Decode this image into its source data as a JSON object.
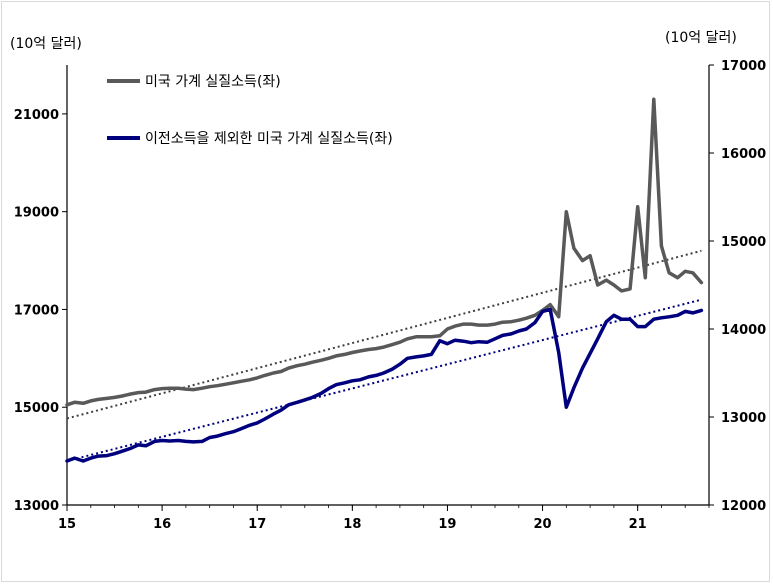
{
  "chart_data": {
    "type": "line",
    "unit_left": "(10억 달러)",
    "unit_right": "(10억 달러)",
    "x_ticks": [
      "15",
      "16",
      "17",
      "18",
      "19",
      "20",
      "21"
    ],
    "x_range": [
      2015,
      2021.75
    ],
    "y_left": {
      "range": [
        13000,
        22000
      ],
      "ticks": [
        "13000",
        "15000",
        "17000",
        "19000",
        "21000"
      ]
    },
    "y_right": {
      "range": [
        12000,
        17000
      ],
      "ticks": [
        "12000",
        "13000",
        "14000",
        "15000",
        "16000",
        "17000"
      ]
    },
    "grid": false,
    "legend_position": "top-left",
    "series": [
      {
        "name": "미국 가계 실질소득(좌)",
        "color": "#595959",
        "axis": "left",
        "x": [
          2015.0,
          2015.08,
          2015.17,
          2015.25,
          2015.33,
          2015.42,
          2015.5,
          2015.58,
          2015.67,
          2015.75,
          2015.83,
          2015.92,
          2016.0,
          2016.08,
          2016.17,
          2016.25,
          2016.33,
          2016.42,
          2016.5,
          2016.58,
          2016.67,
          2016.75,
          2016.83,
          2016.92,
          2017.0,
          2017.08,
          2017.17,
          2017.25,
          2017.33,
          2017.42,
          2017.5,
          2017.58,
          2017.67,
          2017.75,
          2017.83,
          2017.92,
          2018.0,
          2018.08,
          2018.17,
          2018.25,
          2018.33,
          2018.42,
          2018.5,
          2018.58,
          2018.67,
          2018.75,
          2018.83,
          2018.92,
          2019.0,
          2019.08,
          2019.17,
          2019.25,
          2019.33,
          2019.42,
          2019.5,
          2019.58,
          2019.67,
          2019.75,
          2019.83,
          2019.92,
          2020.0,
          2020.08,
          2020.17,
          2020.25,
          2020.33,
          2020.42,
          2020.5,
          2020.58,
          2020.67,
          2020.75,
          2020.83,
          2020.92,
          2021.0,
          2021.08,
          2021.17,
          2021.25,
          2021.33,
          2021.42,
          2021.5,
          2021.58,
          2021.67
        ],
        "y": [
          15050,
          15100,
          15080,
          15130,
          15160,
          15180,
          15200,
          15230,
          15270,
          15300,
          15310,
          15360,
          15380,
          15390,
          15390,
          15370,
          15360,
          15390,
          15420,
          15440,
          15470,
          15500,
          15530,
          15560,
          15600,
          15650,
          15700,
          15730,
          15800,
          15850,
          15880,
          15920,
          15960,
          16000,
          16050,
          16080,
          16120,
          16150,
          16180,
          16200,
          16230,
          16280,
          16330,
          16400,
          16440,
          16440,
          16440,
          16460,
          16600,
          16660,
          16700,
          16700,
          16680,
          16680,
          16700,
          16740,
          16750,
          16780,
          16820,
          16880,
          16980,
          17100,
          16850,
          19000,
          18250,
          18000,
          18100,
          17500,
          17600,
          17500,
          17380,
          17420,
          19100,
          17650,
          21300,
          18300,
          17750,
          17650,
          17780,
          17750,
          17550
        ]
      },
      {
        "name": "이전소득을 제외한 미국 가계 실질소득(좌)",
        "color": "#00007F",
        "axis": "left",
        "x": [
          2015.0,
          2015.08,
          2015.17,
          2015.25,
          2015.33,
          2015.42,
          2015.5,
          2015.58,
          2015.67,
          2015.75,
          2015.83,
          2015.92,
          2016.0,
          2016.08,
          2016.17,
          2016.25,
          2016.33,
          2016.42,
          2016.5,
          2016.58,
          2016.67,
          2016.75,
          2016.83,
          2016.92,
          2017.0,
          2017.08,
          2017.17,
          2017.25,
          2017.33,
          2017.42,
          2017.5,
          2017.58,
          2017.67,
          2017.75,
          2017.83,
          2017.92,
          2018.0,
          2018.08,
          2018.17,
          2018.25,
          2018.33,
          2018.42,
          2018.5,
          2018.58,
          2018.67,
          2018.75,
          2018.83,
          2018.92,
          2019.0,
          2019.08,
          2019.17,
          2019.25,
          2019.33,
          2019.42,
          2019.5,
          2019.58,
          2019.67,
          2019.75,
          2019.83,
          2019.92,
          2020.0,
          2020.08,
          2020.17,
          2020.25,
          2020.33,
          2020.42,
          2020.5,
          2020.58,
          2020.67,
          2020.75,
          2020.83,
          2020.92,
          2021.0,
          2021.08,
          2021.17,
          2021.25,
          2021.33,
          2021.42,
          2021.5,
          2021.58,
          2021.67
        ],
        "y": [
          13900,
          13960,
          13900,
          13960,
          14000,
          14010,
          14050,
          14100,
          14160,
          14230,
          14210,
          14300,
          14320,
          14310,
          14320,
          14300,
          14290,
          14300,
          14380,
          14410,
          14460,
          14500,
          14560,
          14630,
          14680,
          14760,
          14860,
          14940,
          15050,
          15100,
          15150,
          15200,
          15280,
          15380,
          15460,
          15500,
          15540,
          15560,
          15620,
          15650,
          15700,
          15780,
          15880,
          16000,
          16030,
          16050,
          16080,
          16360,
          16300,
          16370,
          16350,
          16320,
          16340,
          16330,
          16400,
          16470,
          16500,
          16560,
          16600,
          16730,
          16960,
          17000,
          16120,
          15000,
          15400,
          15800,
          16100,
          16400,
          16750,
          16880,
          16800,
          16800,
          16650,
          16650,
          16800,
          16830,
          16850,
          16880,
          16960,
          16930,
          16980
        ]
      }
    ],
    "trendlines": [
      {
        "series": "미국 가계 실질소득(좌)",
        "style": "dotted",
        "color": "#404040",
        "from": [
          2015.0,
          14770
        ],
        "to": [
          2021.67,
          18200
        ]
      },
      {
        "series": "이전소득을 제외한 미국 가계 실질소득(좌)",
        "style": "dotted",
        "color": "#00007F",
        "from": [
          2015.0,
          13900
        ],
        "to": [
          2021.67,
          17200
        ]
      }
    ]
  }
}
